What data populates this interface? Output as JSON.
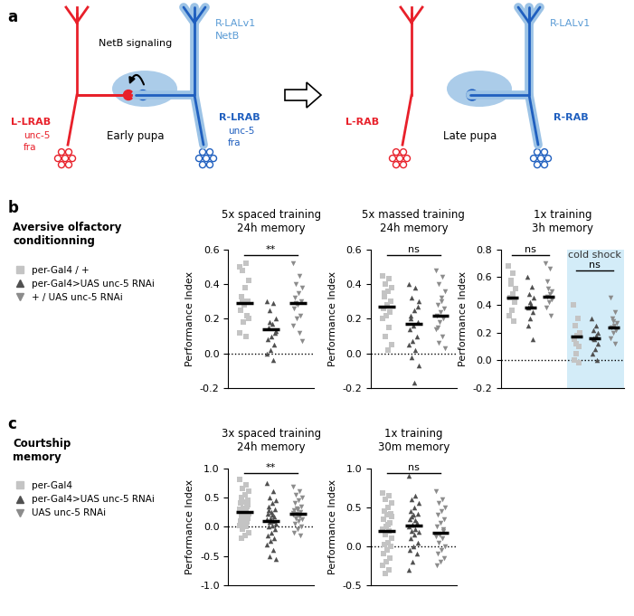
{
  "diagram": {
    "label": "a",
    "early": {
      "title": "Early pupa",
      "signal": "NetB signaling",
      "right_top": "R-LALv1",
      "right_top_sub": "NetB",
      "left": {
        "name": "L-LRAB",
        "genes": [
          "unc-5",
          "fra"
        ]
      },
      "right": {
        "name": "R-LRAB",
        "genes": [
          "unc-5",
          "fra"
        ]
      }
    },
    "late": {
      "title": "Late pupa",
      "right_top": "R-LALv1",
      "left": {
        "name": "L-RAB",
        "genes": []
      },
      "right": {
        "name": "R-RAB",
        "genes": []
      }
    }
  },
  "sections": [
    {
      "label": "b",
      "title": "Aversive olfactory\nconditionning"
    },
    {
      "label": "c",
      "title": "Courtship\nmemory"
    }
  ],
  "chart_data": [
    {
      "type": "scatter",
      "panel": "b",
      "title": "5x spaced training\n24h memory",
      "y_label": "Performance Index",
      "ylim": [
        -0.2,
        0.6
      ],
      "yticks": [
        -0.2,
        0.0,
        0.2,
        0.4,
        0.6
      ],
      "reference_line": 0.0,
      "tick_labels": "y",
      "series": [
        {
          "name": "per-Gal4 / +",
          "color": "#c4c4c4",
          "marker": "square"
        },
        {
          "name": "per-Gal4>UAS unc-5 RNAi",
          "color": "#505050",
          "marker": "triangle_up"
        },
        {
          "name": "+ / UAS unc-5 RNAi",
          "color": "#8c8c8c",
          "marker": "triangle_down"
        }
      ],
      "sets": [
        {
          "significance": "**",
          "means": [
            0.29,
            0.14,
            0.29
          ],
          "values": [
            [
              0.5,
              0.52,
              0.48,
              0.42,
              0.38,
              0.33,
              0.3,
              0.28,
              0.25,
              0.22,
              0.18,
              0.12,
              0.1,
              0.3,
              0.2
            ],
            [
              0.3,
              0.29,
              0.25,
              0.2,
              0.17,
              0.15,
              0.12,
              0.1,
              0.08,
              0.05,
              0.02,
              0.0,
              -0.04,
              0.18,
              0.13
            ],
            [
              0.52,
              0.45,
              0.4,
              0.38,
              0.35,
              0.32,
              0.3,
              0.28,
              0.26,
              0.22,
              0.2,
              0.16,
              0.12,
              0.29,
              0.07
            ]
          ]
        }
      ]
    },
    {
      "type": "scatter",
      "panel": "b",
      "title": "5x massed training\n24h memory",
      "y_label": "Performance Index",
      "ylim": [
        -0.2,
        0.6
      ],
      "yticks": [
        -0.2,
        0.0,
        0.2,
        0.4,
        0.6
      ],
      "reference_line": 0.0,
      "tick_labels": "y",
      "series": [
        {
          "name": "per-Gal4 / +",
          "color": "#c4c4c4",
          "marker": "square"
        },
        {
          "name": "per-Gal4>UAS unc-5 RNAi",
          "color": "#505050",
          "marker": "triangle_up"
        },
        {
          "name": "+ / UAS unc-5 RNAi",
          "color": "#8c8c8c",
          "marker": "triangle_down"
        }
      ],
      "sets": [
        {
          "significance": "ns",
          "means": [
            0.27,
            0.17,
            0.22
          ],
          "values": [
            [
              0.45,
              0.43,
              0.4,
              0.38,
              0.36,
              0.33,
              0.3,
              0.28,
              0.26,
              0.24,
              0.22,
              0.2,
              0.15,
              0.1,
              0.05,
              0.02,
              0.35,
              0.3
            ],
            [
              0.4,
              0.38,
              0.32,
              0.3,
              0.25,
              0.22,
              0.18,
              0.16,
              0.14,
              0.1,
              0.07,
              0.05,
              0.02,
              -0.02,
              -0.07,
              -0.17,
              0.2,
              0.27
            ],
            [
              0.48,
              0.44,
              0.4,
              0.36,
              0.32,
              0.28,
              0.26,
              0.24,
              0.22,
              0.2,
              0.18,
              0.14,
              0.1,
              0.06,
              0.03,
              0.3,
              0.15
            ]
          ]
        }
      ]
    },
    {
      "type": "scatter",
      "panel": "b",
      "title": "1x training\n3h memory",
      "y_label": "Performance Index",
      "ylim": [
        -0.2,
        0.8
      ],
      "yticks": [
        -0.2,
        0.0,
        0.2,
        0.4,
        0.6,
        0.8
      ],
      "reference_line": 0.0,
      "tick_labels": "y",
      "series": [
        {
          "name": "per-Gal4 / +",
          "color": "#c4c4c4",
          "marker": "square"
        },
        {
          "name": "per-Gal4>UAS unc-5 RNAi",
          "color": "#505050",
          "marker": "triangle_up"
        },
        {
          "name": "+ / UAS unc-5 RNAi",
          "color": "#8c8c8c",
          "marker": "triangle_down"
        }
      ],
      "sets": [
        {
          "significance": "ns",
          "means": [
            0.45,
            0.38,
            0.46
          ],
          "values": [
            [
              0.68,
              0.63,
              0.58,
              0.52,
              0.48,
              0.45,
              0.42,
              0.36,
              0.32,
              0.28,
              0.55
            ],
            [
              0.6,
              0.53,
              0.48,
              0.45,
              0.4,
              0.38,
              0.35,
              0.3,
              0.25,
              0.15,
              0.42
            ],
            [
              0.7,
              0.66,
              0.57,
              0.5,
              0.48,
              0.46,
              0.44,
              0.42,
              0.38,
              0.32,
              0.52
            ]
          ]
        },
        {
          "label": "cold shock",
          "significance": "ns",
          "means": [
            0.17,
            0.16,
            0.24
          ],
          "values": [
            [
              0.4,
              0.3,
              0.25,
              0.2,
              0.18,
              0.15,
              0.1,
              0.05,
              0.0,
              -0.02,
              0.12
            ],
            [
              0.3,
              0.25,
              0.22,
              0.2,
              0.18,
              0.16,
              0.12,
              0.08,
              0.05,
              0.0,
              0.15
            ],
            [
              0.45,
              0.35,
              0.3,
              0.27,
              0.25,
              0.24,
              0.22,
              0.2,
              0.16,
              0.12,
              0.28
            ]
          ]
        }
      ]
    },
    {
      "type": "scatter",
      "panel": "c",
      "title": "3x spaced training\n24h memory",
      "y_label": "Performance Index",
      "ylim": [
        -1.0,
        1.0
      ],
      "yticks": [
        -1.0,
        -0.5,
        0.0,
        0.5,
        1.0
      ],
      "reference_line": 0.0,
      "tick_labels": "y",
      "series": [
        {
          "name": "per-Gal4",
          "color": "#c4c4c4",
          "marker": "square"
        },
        {
          "name": "per-Gal4>UAS unc-5 RNAi",
          "color": "#505050",
          "marker": "triangle_up"
        },
        {
          "name": "UAS unc-5 RNAi",
          "color": "#8c8c8c",
          "marker": "triangle_down"
        }
      ],
      "sets": [
        {
          "significance": "**",
          "means": [
            0.25,
            0.1,
            0.22
          ],
          "values": [
            [
              0.8,
              0.72,
              0.65,
              0.6,
              0.55,
              0.5,
              0.45,
              0.42,
              0.4,
              0.35,
              0.32,
              0.3,
              0.28,
              0.25,
              0.22,
              0.2,
              0.18,
              0.15,
              0.12,
              0.1,
              0.08,
              0.05,
              0.02,
              0.0,
              -0.05,
              -0.1,
              -0.15,
              -0.2,
              0.38,
              0.27
            ],
            [
              0.75,
              0.6,
              0.5,
              0.45,
              0.4,
              0.35,
              0.3,
              0.25,
              0.22,
              0.18,
              0.15,
              0.12,
              0.1,
              0.08,
              0.05,
              0.02,
              0.0,
              -0.05,
              -0.1,
              -0.15,
              -0.2,
              -0.25,
              -0.3,
              -0.4,
              -0.5,
              -0.55,
              0.2,
              0.28
            ],
            [
              0.68,
              0.6,
              0.55,
              0.5,
              0.45,
              0.4,
              0.35,
              0.3,
              0.28,
              0.25,
              0.22,
              0.2,
              0.18,
              0.15,
              0.12,
              0.1,
              0.05,
              0.0,
              -0.05,
              -0.1,
              -0.15,
              0.32,
              0.24
            ]
          ]
        }
      ]
    },
    {
      "type": "scatter",
      "panel": "c",
      "title": "1x training\n30m memory",
      "y_label": "Performance Index",
      "ylim": [
        -0.5,
        1.0
      ],
      "yticks": [
        -0.5,
        0.0,
        0.5,
        1.0
      ],
      "reference_line": 0.0,
      "tick_labels": "y",
      "series": [
        {
          "name": "per-Gal4",
          "color": "#c4c4c4",
          "marker": "square"
        },
        {
          "name": "per-Gal4>UAS unc-5 RNAi",
          "color": "#505050",
          "marker": "triangle_up"
        },
        {
          "name": "UAS unc-5 RNAi",
          "color": "#8c8c8c",
          "marker": "triangle_down"
        }
      ],
      "sets": [
        {
          "significance": "ns",
          "means": [
            0.2,
            0.26,
            0.17
          ],
          "values": [
            [
              0.68,
              0.65,
              0.6,
              0.55,
              0.5,
              0.45,
              0.42,
              0.4,
              0.35,
              0.3,
              0.25,
              0.22,
              0.2,
              0.15,
              0.1,
              0.05,
              0.02,
              0.0,
              -0.05,
              -0.1,
              -0.15,
              -0.2,
              -0.25,
              -0.3,
              -0.35,
              0.38,
              0.28
            ],
            [
              0.9,
              0.65,
              0.6,
              0.55,
              0.5,
              0.45,
              0.42,
              0.4,
              0.35,
              0.3,
              0.28,
              0.25,
              0.22,
              0.2,
              0.18,
              0.15,
              0.1,
              0.05,
              0.0,
              -0.05,
              -0.1,
              -0.2,
              -0.3,
              0.33,
              0.38
            ],
            [
              0.7,
              0.6,
              0.55,
              0.5,
              0.45,
              0.4,
              0.35,
              0.3,
              0.25,
              0.2,
              0.15,
              0.12,
              0.1,
              0.05,
              0.0,
              -0.05,
              -0.1,
              -0.15,
              -0.2,
              -0.25,
              0.22
            ]
          ]
        }
      ]
    }
  ]
}
